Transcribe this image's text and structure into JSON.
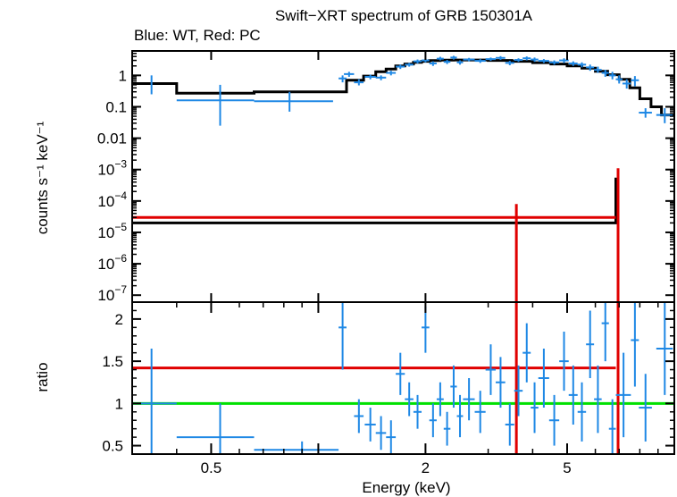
{
  "title": "Swift−XRT spectrum of GRB 150301A",
  "subtitle": "Blue: WT, Red: PC",
  "chart_data": [
    {
      "type": "scatter",
      "panel": "spectrum",
      "title": "Swift−XRT spectrum of GRB 150301A",
      "subtitle": "Blue: WT, Red: PC",
      "xlabel": "Energy (keV)",
      "ylabel": "counts s⁻¹ keV⁻¹",
      "xscale": "log",
      "yscale": "log",
      "xlim": [
        0.3,
        10
      ],
      "ylim": [
        6e-08,
        6
      ],
      "yticks": [
        {
          "value": 1,
          "label": "1"
        },
        {
          "value": 0.1,
          "label": "0.1"
        },
        {
          "value": 0.01,
          "label": "0.01"
        },
        {
          "value": 0.001,
          "base": "10",
          "exp": "−3"
        },
        {
          "value": 0.0001,
          "base": "10",
          "exp": "−4"
        },
        {
          "value": 1e-05,
          "base": "10",
          "exp": "−5"
        },
        {
          "value": 1e-06,
          "base": "10",
          "exp": "−6"
        },
        {
          "value": 1e-07,
          "base": "10",
          "exp": "−7"
        }
      ],
      "colors": {
        "wt": "#1e88e5",
        "pc": "#e00000",
        "model": "#000000"
      },
      "series": [
        {
          "points": [
            {
              "x": 0.34,
              "xlo": 0.34,
              "xhi": 0.34,
              "y": 0.55,
              "ylo": 0.25,
              "yhi": 1.0
            },
            {
              "x": 0.53,
              "xlo": 0.4,
              "xhi": 0.66,
              "y": 0.16,
              "ylo": 0.025,
              "yhi": 0.5
            },
            {
              "x": 0.83,
              "xlo": 0.66,
              "xhi": 1.1,
              "y": 0.15,
              "ylo": 0.07,
              "yhi": 0.3
            },
            {
              "x": 1.17,
              "xlo": 1.14,
              "xhi": 1.2,
              "y": 0.8,
              "ylo": 0.6,
              "yhi": 1.0
            },
            {
              "x": 1.22,
              "xlo": 1.18,
              "xhi": 1.26,
              "y": 1.1,
              "ylo": 0.9,
              "yhi": 1.3
            },
            {
              "x": 1.3,
              "xlo": 1.26,
              "xhi": 1.34,
              "y": 0.6,
              "ylo": 0.48,
              "yhi": 0.75
            },
            {
              "x": 1.4,
              "xlo": 1.35,
              "xhi": 1.45,
              "y": 0.9,
              "ylo": 0.75,
              "yhi": 1.05
            },
            {
              "x": 1.5,
              "xlo": 1.45,
              "xhi": 1.55,
              "y": 0.85,
              "ylo": 0.7,
              "yhi": 1.0
            },
            {
              "x": 1.6,
              "xlo": 1.55,
              "xhi": 1.65,
              "y": 1.2,
              "ylo": 1.0,
              "yhi": 1.4
            },
            {
              "x": 1.7,
              "xlo": 1.65,
              "xhi": 1.75,
              "y": 1.9,
              "ylo": 1.6,
              "yhi": 2.2
            },
            {
              "x": 1.8,
              "xlo": 1.75,
              "xhi": 1.85,
              "y": 2.2,
              "ylo": 1.9,
              "yhi": 2.5
            },
            {
              "x": 1.9,
              "xlo": 1.85,
              "xhi": 1.95,
              "y": 2.8,
              "ylo": 2.4,
              "yhi": 3.2
            },
            {
              "x": 2.0,
              "xlo": 1.95,
              "xhi": 2.05,
              "y": 3.0,
              "ylo": 2.6,
              "yhi": 3.4
            },
            {
              "x": 2.1,
              "xlo": 2.05,
              "xhi": 2.15,
              "y": 2.4,
              "ylo": 2.0,
              "yhi": 2.8
            },
            {
              "x": 2.2,
              "xlo": 2.15,
              "xhi": 2.25,
              "y": 3.4,
              "ylo": 3.0,
              "yhi": 3.9
            },
            {
              "x": 2.3,
              "xlo": 2.25,
              "xhi": 2.35,
              "y": 2.7,
              "ylo": 2.3,
              "yhi": 3.1
            },
            {
              "x": 2.4,
              "xlo": 2.35,
              "xhi": 2.45,
              "y": 3.7,
              "ylo": 3.2,
              "yhi": 4.2
            },
            {
              "x": 2.5,
              "xlo": 2.45,
              "xhi": 2.55,
              "y": 2.6,
              "ylo": 2.2,
              "yhi": 3.0
            },
            {
              "x": 2.65,
              "xlo": 2.55,
              "xhi": 2.75,
              "y": 3.2,
              "ylo": 2.8,
              "yhi": 3.6
            },
            {
              "x": 2.85,
              "xlo": 2.75,
              "xhi": 2.95,
              "y": 2.9,
              "ylo": 2.5,
              "yhi": 3.3
            },
            {
              "x": 3.05,
              "xlo": 2.95,
              "xhi": 3.15,
              "y": 3.3,
              "ylo": 2.9,
              "yhi": 3.7
            },
            {
              "x": 3.25,
              "xlo": 3.15,
              "xhi": 3.35,
              "y": 3.6,
              "ylo": 3.1,
              "yhi": 4.1
            },
            {
              "x": 3.45,
              "xlo": 3.35,
              "xhi": 3.55,
              "y": 2.5,
              "ylo": 2.1,
              "yhi": 2.9
            },
            {
              "x": 3.65,
              "xlo": 3.55,
              "xhi": 3.75,
              "y": 3.1,
              "ylo": 2.7,
              "yhi": 3.5
            },
            {
              "x": 3.85,
              "xlo": 3.75,
              "xhi": 3.95,
              "y": 3.5,
              "ylo": 3.0,
              "yhi": 4.0
            },
            {
              "x": 4.05,
              "xlo": 3.95,
              "xhi": 4.15,
              "y": 3.2,
              "ylo": 2.7,
              "yhi": 3.7
            },
            {
              "x": 4.3,
              "xlo": 4.15,
              "xhi": 4.45,
              "y": 2.9,
              "ylo": 2.5,
              "yhi": 3.3
            },
            {
              "x": 4.6,
              "xlo": 4.45,
              "xhi": 4.75,
              "y": 2.6,
              "ylo": 2.2,
              "yhi": 3.0
            },
            {
              "x": 4.9,
              "xlo": 4.75,
              "xhi": 5.05,
              "y": 3.0,
              "ylo": 2.5,
              "yhi": 3.5
            },
            {
              "x": 5.2,
              "xlo": 5.05,
              "xhi": 5.35,
              "y": 2.4,
              "ylo": 2.0,
              "yhi": 2.8
            },
            {
              "x": 5.5,
              "xlo": 5.35,
              "xhi": 5.65,
              "y": 2.2,
              "ylo": 1.8,
              "yhi": 2.6
            },
            {
              "x": 5.8,
              "xlo": 5.65,
              "xhi": 5.95,
              "y": 1.8,
              "ylo": 1.4,
              "yhi": 2.2
            },
            {
              "x": 6.1,
              "xlo": 5.95,
              "xhi": 6.25,
              "y": 1.5,
              "ylo": 1.2,
              "yhi": 1.9
            },
            {
              "x": 6.4,
              "xlo": 6.25,
              "xhi": 6.55,
              "y": 1.2,
              "ylo": 0.9,
              "yhi": 1.5
            },
            {
              "x": 6.7,
              "xlo": 6.55,
              "xhi": 6.85,
              "y": 1.0,
              "ylo": 0.75,
              "yhi": 1.3
            },
            {
              "x": 7.0,
              "xlo": 6.85,
              "xhi": 7.15,
              "y": 0.75,
              "ylo": 0.55,
              "yhi": 1.0
            },
            {
              "x": 7.35,
              "xlo": 7.15,
              "xhi": 7.55,
              "y": 0.55,
              "ylo": 0.38,
              "yhi": 0.75
            },
            {
              "x": 7.75,
              "xlo": 7.55,
              "xhi": 7.95,
              "y": 0.7,
              "ylo": 0.45,
              "yhi": 0.95
            },
            {
              "x": 8.3,
              "xlo": 7.95,
              "xhi": 8.65,
              "y": 0.065,
              "ylo": 0.045,
              "yhi": 0.09
            },
            {
              "x": 9.4,
              "xlo": 8.9,
              "xhi": 9.9,
              "y": 0.055,
              "ylo": 0.03,
              "yhi": 0.09
            }
          ]
        },
        {
          "points": [
            {
              "x": 3.6,
              "xlo": 0.3,
              "xhi": 6.85,
              "y": 3e-05,
              "ylo": 6e-08,
              "yhi": 8e-05
            }
          ]
        },
        {
          "step_x": [
            0.3,
            0.4,
            0.66,
            1.14,
            1.2,
            1.34,
            1.45,
            1.55,
            1.65,
            1.75,
            1.85,
            1.95,
            2.05,
            2.2,
            2.4,
            2.6,
            3.0,
            3.5,
            4.0,
            4.5,
            5.0,
            5.5,
            6.0,
            6.5,
            7.0,
            7.5,
            8.0,
            8.6,
            9.2,
            10.0
          ],
          "step_y": [
            0.55,
            0.27,
            0.3,
            0.3,
            0.7,
            0.95,
            1.3,
            1.6,
            2.0,
            2.3,
            2.6,
            2.8,
            2.95,
            3.05,
            3.1,
            3.1,
            3.0,
            2.8,
            2.55,
            2.3,
            2.0,
            1.7,
            1.35,
            1.05,
            0.75,
            0.4,
            0.18,
            0.1,
            0.055
          ],
          "pc_model_x": [
            0.3,
            6.85,
            6.85,
            7.0
          ],
          "pc_model_y": [
            2e-05,
            2e-05,
            0.0005,
            0.0005
          ]
        }
      ]
    },
    {
      "type": "scatter",
      "panel": "ratio",
      "xlabel": "Energy (keV)",
      "ylabel": "ratio",
      "xscale": "log",
      "xlim": [
        0.3,
        10
      ],
      "ylim": [
        0.4,
        2.2
      ],
      "yticks": [
        {
          "value": 0.5,
          "label": "0.5"
        },
        {
          "value": 1,
          "label": "1"
        },
        {
          "value": 1.5,
          "label": "1.5"
        },
        {
          "value": 2,
          "label": "2"
        }
      ],
      "xticks": [
        {
          "value": 0.5,
          "label": "0.5"
        },
        {
          "value": 1,
          "label": ""
        },
        {
          "value": 2,
          "label": "2"
        },
        {
          "value": 5,
          "label": "5"
        }
      ],
      "reference_lines": [
        {
          "y": 1.0,
          "color": "#00e000"
        },
        {
          "y": 1.42,
          "color": "#e00000"
        }
      ],
      "series": [
        {
          "points": [
            {
              "x": 0.34,
              "xlo": 0.3,
              "xhi": 0.4,
              "y": 1.0,
              "ylo": 0.4,
              "yhi": 1.65
            },
            {
              "x": 0.53,
              "xlo": 0.4,
              "xhi": 0.66,
              "y": 0.6,
              "ylo": 0.4,
              "yhi": 1.0
            },
            {
              "x": 0.9,
              "xlo": 0.66,
              "xhi": 1.14,
              "y": 0.45,
              "ylo": 0.4,
              "yhi": 0.55
            },
            {
              "x": 1.17,
              "xlo": 1.14,
              "xhi": 1.2,
              "y": 1.9,
              "ylo": 1.4,
              "yhi": 2.2
            },
            {
              "x": 1.3,
              "xlo": 1.26,
              "xhi": 1.34,
              "y": 0.85,
              "ylo": 0.65,
              "yhi": 1.05
            },
            {
              "x": 1.4,
              "xlo": 1.35,
              "xhi": 1.45,
              "y": 0.75,
              "ylo": 0.55,
              "yhi": 0.95
            },
            {
              "x": 1.5,
              "xlo": 1.45,
              "xhi": 1.55,
              "y": 0.65,
              "ylo": 0.45,
              "yhi": 0.85
            },
            {
              "x": 1.6,
              "xlo": 1.55,
              "xhi": 1.65,
              "y": 0.6,
              "ylo": 0.4,
              "yhi": 0.8
            },
            {
              "x": 1.7,
              "xlo": 1.65,
              "xhi": 1.75,
              "y": 1.35,
              "ylo": 1.1,
              "yhi": 1.6
            },
            {
              "x": 1.8,
              "xlo": 1.75,
              "xhi": 1.85,
              "y": 1.05,
              "ylo": 0.85,
              "yhi": 1.25
            },
            {
              "x": 1.9,
              "xlo": 1.85,
              "xhi": 1.95,
              "y": 0.9,
              "ylo": 0.7,
              "yhi": 1.1
            },
            {
              "x": 2.0,
              "xlo": 1.95,
              "xhi": 2.05,
              "y": 1.9,
              "ylo": 1.6,
              "yhi": 2.15
            },
            {
              "x": 2.1,
              "xlo": 2.05,
              "xhi": 2.15,
              "y": 0.8,
              "ylo": 0.6,
              "yhi": 1.0
            },
            {
              "x": 2.2,
              "xlo": 2.15,
              "xhi": 2.25,
              "y": 1.05,
              "ylo": 0.85,
              "yhi": 1.25
            },
            {
              "x": 2.3,
              "xlo": 2.25,
              "xhi": 2.35,
              "y": 0.7,
              "ylo": 0.5,
              "yhi": 0.9
            },
            {
              "x": 2.4,
              "xlo": 2.35,
              "xhi": 2.45,
              "y": 1.2,
              "ylo": 0.95,
              "yhi": 1.45
            },
            {
              "x": 2.5,
              "xlo": 2.45,
              "xhi": 2.55,
              "y": 0.85,
              "ylo": 0.6,
              "yhi": 1.1
            },
            {
              "x": 2.65,
              "xlo": 2.55,
              "xhi": 2.75,
              "y": 1.05,
              "ylo": 0.8,
              "yhi": 1.3
            },
            {
              "x": 2.85,
              "xlo": 2.75,
              "xhi": 2.95,
              "y": 0.9,
              "ylo": 0.65,
              "yhi": 1.15
            },
            {
              "x": 3.05,
              "xlo": 2.95,
              "xhi": 3.15,
              "y": 1.4,
              "ylo": 1.1,
              "yhi": 1.7
            },
            {
              "x": 3.25,
              "xlo": 3.15,
              "xhi": 3.35,
              "y": 1.25,
              "ylo": 0.95,
              "yhi": 1.55
            },
            {
              "x": 3.45,
              "xlo": 3.35,
              "xhi": 3.55,
              "y": 0.75,
              "ylo": 0.5,
              "yhi": 1.0
            },
            {
              "x": 3.65,
              "xlo": 3.55,
              "xhi": 3.75,
              "y": 1.15,
              "ylo": 0.85,
              "yhi": 1.45
            },
            {
              "x": 3.85,
              "xlo": 3.75,
              "xhi": 3.95,
              "y": 1.6,
              "ylo": 1.25,
              "yhi": 1.95
            },
            {
              "x": 4.05,
              "xlo": 3.95,
              "xhi": 4.15,
              "y": 0.95,
              "ylo": 0.65,
              "yhi": 1.25
            },
            {
              "x": 4.3,
              "xlo": 4.15,
              "xhi": 4.45,
              "y": 1.3,
              "ylo": 0.95,
              "yhi": 1.65
            },
            {
              "x": 4.6,
              "xlo": 4.45,
              "xhi": 4.75,
              "y": 0.8,
              "ylo": 0.5,
              "yhi": 1.1
            },
            {
              "x": 4.9,
              "xlo": 4.75,
              "xhi": 5.05,
              "y": 1.5,
              "ylo": 1.15,
              "yhi": 1.85
            },
            {
              "x": 5.2,
              "xlo": 5.05,
              "xhi": 5.35,
              "y": 1.1,
              "ylo": 0.75,
              "yhi": 1.45
            },
            {
              "x": 5.5,
              "xlo": 5.35,
              "xhi": 5.65,
              "y": 0.9,
              "ylo": 0.55,
              "yhi": 1.25
            },
            {
              "x": 5.8,
              "xlo": 5.65,
              "xhi": 5.95,
              "y": 1.7,
              "ylo": 1.3,
              "yhi": 2.1
            },
            {
              "x": 6.1,
              "xlo": 5.95,
              "xhi": 6.25,
              "y": 1.05,
              "ylo": 0.65,
              "yhi": 1.45
            },
            {
              "x": 6.4,
              "xlo": 6.25,
              "xhi": 6.55,
              "y": 1.95,
              "ylo": 1.5,
              "yhi": 2.2
            },
            {
              "x": 6.7,
              "xlo": 6.55,
              "xhi": 6.85,
              "y": 0.7,
              "ylo": 0.4,
              "yhi": 1.05
            },
            {
              "x": 7.2,
              "xlo": 6.85,
              "xhi": 7.55,
              "y": 1.1,
              "ylo": 0.6,
              "yhi": 1.6
            },
            {
              "x": 7.75,
              "xlo": 7.55,
              "xhi": 7.95,
              "y": 1.75,
              "ylo": 1.2,
              "yhi": 2.2
            },
            {
              "x": 8.3,
              "xlo": 7.95,
              "xhi": 8.65,
              "y": 0.95,
              "ylo": 0.55,
              "yhi": 1.35
            },
            {
              "x": 9.4,
              "xlo": 8.9,
              "xhi": 9.9,
              "y": 1.65,
              "ylo": 1.1,
              "yhi": 2.2
            }
          ]
        },
        {
          "points": [
            {
              "x": 3.6,
              "xlo": 0.3,
              "xhi": 6.85,
              "y": 1.42,
              "ylo": 0.4,
              "yhi": 2.2
            }
          ]
        }
      ]
    }
  ]
}
